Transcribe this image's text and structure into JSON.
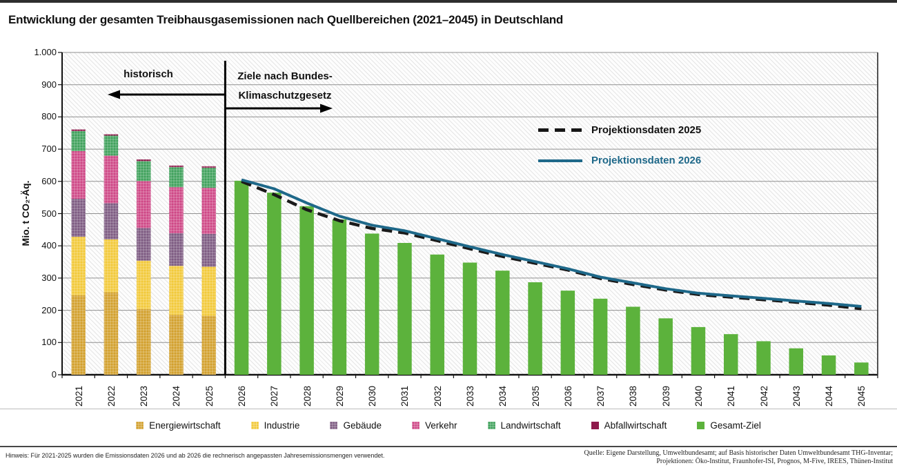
{
  "title": "Entwicklung der gesamten Treibhausgasemissionen nach Quellbereichen (2021–2045) in Deutschland",
  "chart_data": {
    "type": "bar",
    "title": "Entwicklung der gesamten Treibhausgasemissionen nach Quellbereichen (2021–2045) in Deutschland",
    "xlabel": "",
    "ylabel": "Mio. t CO₂-Äq.",
    "ylim": [
      0,
      1000
    ],
    "ytick_step": 100,
    "yticks": [
      "0",
      "100",
      "200",
      "300",
      "400",
      "500",
      "600",
      "700",
      "800",
      "900",
      "1.000"
    ],
    "grid": "horizontal",
    "categories": [
      2021,
      2022,
      2023,
      2024,
      2025,
      2026,
      2027,
      2028,
      2029,
      2030,
      2031,
      2032,
      2033,
      2034,
      2035,
      2036,
      2037,
      2038,
      2039,
      2040,
      2041,
      2042,
      2043,
      2044,
      2045
    ],
    "stacked_years": [
      2021,
      2022,
      2023,
      2024,
      2025
    ],
    "series": [
      {
        "name": "Energiewirtschaft",
        "color": "#D2A02C",
        "hatched": true,
        "values": [
          247,
          256,
          204,
          186,
          183
        ]
      },
      {
        "name": "Industrie",
        "color": "#F2C939",
        "hatched": true,
        "values": [
          181,
          164,
          150,
          152,
          152
        ]
      },
      {
        "name": "Gebäude",
        "color": "#7D5A81",
        "hatched": true,
        "values": [
          118,
          112,
          101,
          101,
          102
        ]
      },
      {
        "name": "Verkehr",
        "color": "#CE4786",
        "hatched": true,
        "values": [
          148,
          148,
          146,
          143,
          143
        ]
      },
      {
        "name": "Landwirtschaft",
        "color": "#3FA15B",
        "hatched": true,
        "values": [
          62,
          62,
          62,
          62,
          62
        ]
      },
      {
        "name": "Abfallwirtschaft",
        "color": "#8E1A4C",
        "hatched": true,
        "values": [
          5,
          4,
          5,
          5,
          5
        ]
      }
    ],
    "target_series": {
      "name": "Gesamt-Ziel",
      "color": "#5CB23C",
      "start_year": 2026,
      "values": [
        602,
        565,
        523,
        482,
        438,
        409,
        373,
        348,
        323,
        287,
        261,
        236,
        211,
        175,
        148,
        126,
        104,
        82,
        60,
        38
      ]
    },
    "lines": [
      {
        "name": "Projektionsdaten 2025",
        "style": "dashed",
        "color": "#1A1A1A",
        "start_year": 2026,
        "values": [
          600,
          559,
          512,
          478,
          454,
          440,
          416,
          391,
          367,
          346,
          325,
          299,
          280,
          263,
          249,
          241,
          233,
          225,
          216,
          205
        ]
      },
      {
        "name": "Projektionsdaten 2026",
        "style": "solid",
        "color": "#1E6889",
        "start_year": 2026,
        "values": [
          605,
          577,
          533,
          492,
          464,
          447,
          422,
          397,
          373,
          351,
          329,
          303,
          285,
          267,
          253,
          245,
          237,
          229,
          221,
          212
        ]
      }
    ],
    "annotations": {
      "historical_label": "historisch",
      "target_label_line1": "Ziele nach Bundes-",
      "target_label_line2": "Klimaschutzgesetz",
      "divider_between": [
        2025,
        2026
      ]
    }
  },
  "legend": {
    "items": [
      {
        "label": "Energiewirtschaft",
        "color": "#D2A02C",
        "hatched": true
      },
      {
        "label": "Industrie",
        "color": "#F2C939",
        "hatched": true
      },
      {
        "label": "Gebäude",
        "color": "#7D5A81",
        "hatched": true
      },
      {
        "label": "Verkehr",
        "color": "#CE4786",
        "hatched": true
      },
      {
        "label": "Landwirtschaft",
        "color": "#3FA15B",
        "hatched": true
      },
      {
        "label": "Abfallwirtschaft",
        "color": "#8E1A4C",
        "hatched": false
      },
      {
        "label": "Gesamt-Ziel",
        "color": "#5CB23C",
        "hatched": false
      }
    ]
  },
  "footnote": "Hinweis: Für 2021-2025 wurden die Emissionsdaten 2026 und ab 2026 die rechnerisch angepassten Jahresemissionsmengen verwendet.",
  "source_line1": "Quelle: Eigene Darstellung, Umweltbundesamt; auf Basis historischer Daten Umweltbundesamt THG-Inventar;",
  "source_line2": "Projektionen: Öko-Institut, Fraunhofer-ISI, Prognos, M-Five, IREES, Thünen-Institut"
}
